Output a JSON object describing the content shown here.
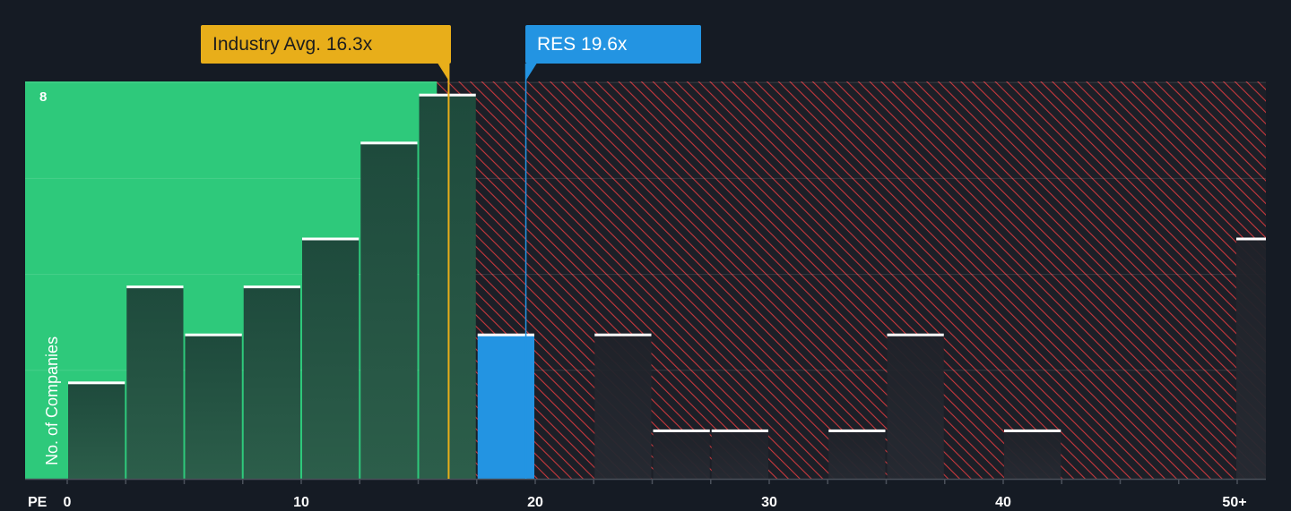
{
  "chart_data": {
    "type": "bar",
    "xlabel": "PE",
    "ylabel": "No. of Companies",
    "xlim": [
      0,
      50
    ],
    "ylim": [
      0,
      8.3
    ],
    "x_ticks": [
      "0",
      "10",
      "20",
      "30",
      "40",
      "50+"
    ],
    "x_tick_values": [
      0,
      10,
      20,
      30,
      40,
      50
    ],
    "y_ticks": [
      "8"
    ],
    "y_tick_values": [
      8
    ],
    "bin_width": 2.5,
    "bins": [
      {
        "x0": 0,
        "x1": 2.5,
        "count": 2
      },
      {
        "x0": 2.5,
        "x1": 5,
        "count": 4
      },
      {
        "x0": 5,
        "x1": 7.5,
        "count": 3
      },
      {
        "x0": 7.5,
        "x1": 10,
        "count": 4
      },
      {
        "x0": 10,
        "x1": 12.5,
        "count": 5
      },
      {
        "x0": 12.5,
        "x1": 15,
        "count": 7
      },
      {
        "x0": 15,
        "x1": 17.5,
        "count": 8
      },
      {
        "x0": 17.5,
        "x1": 20,
        "count": 3,
        "highlight": true
      },
      {
        "x0": 22.5,
        "x1": 25,
        "count": 3
      },
      {
        "x0": 25,
        "x1": 27.5,
        "count": 1
      },
      {
        "x0": 27.5,
        "x1": 30,
        "count": 1
      },
      {
        "x0": 32.5,
        "x1": 35,
        "count": 1
      },
      {
        "x0": 35,
        "x1": 37.5,
        "count": 3
      },
      {
        "x0": 40,
        "x1": 42.5,
        "count": 1
      },
      {
        "x0": 50,
        "x1": 52.5,
        "count": 5
      }
    ],
    "industry_avg": {
      "label": "Industry Avg. 16.3x",
      "value": 16.3
    },
    "company": {
      "label": "RES 19.6x",
      "value": 19.6
    },
    "undervalued_region": [
      0,
      15.8
    ],
    "overvalued_region": [
      15.8,
      51.5
    ],
    "grid": true,
    "colors": {
      "background": "#151b24",
      "undervalued": "#2ec97b",
      "overvalued_hatch": "#c8383c",
      "bar_dark": "#1f3a33",
      "company_bar": "#2394e2",
      "industry_line": "#e8ae1a",
      "bar_cap": "#ffffff"
    }
  }
}
